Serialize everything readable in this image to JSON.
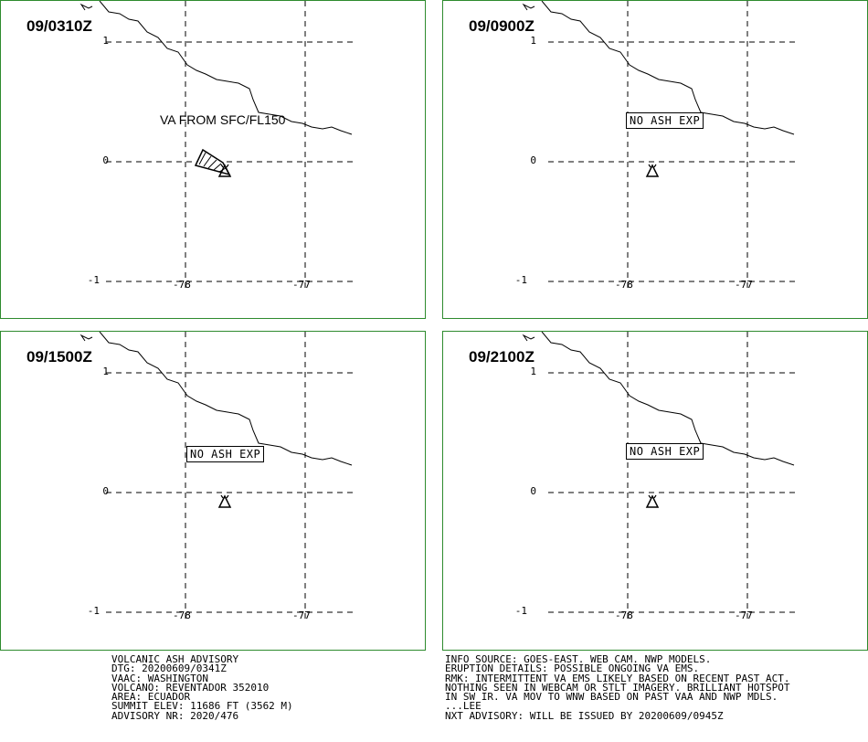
{
  "panels": [
    {
      "time": "09/0310Z",
      "ash_label": "VA FROM SFC/FL150",
      "forecast_label": ""
    },
    {
      "time": "09/0900Z",
      "ash_label": "",
      "forecast_label": "NO ASH EXP"
    },
    {
      "time": "09/1500Z",
      "ash_label": "",
      "forecast_label": "NO ASH EXP"
    },
    {
      "time": "09/2100Z",
      "ash_label": "",
      "forecast_label": "NO ASH EXP"
    }
  ],
  "axes": {
    "lat_ticks": [
      "1",
      "0",
      "-1"
    ],
    "lon_ticks": [
      "-78",
      "-77"
    ]
  },
  "advisory_left": [
    "VOLCANIC ASH ADVISORY",
    "DTG: 20200609/0341Z",
    "VAAC: WASHINGTON",
    "VOLCANO: REVENTADOR 352010",
    "AREA: ECUADOR",
    "SUMMIT ELEV: 11686 FT (3562 M)",
    "ADVISORY NR: 2020/476"
  ],
  "advisory_right": [
    "INFO SOURCE: GOES-EAST. WEB CAM. NWP MODELS.",
    "ERUPTION DETAILS: POSSIBLE ONGOING VA EMS.",
    "RMK: INTERMITTENT VA EMS LIKELY BASED ON RECENT PAST ACT.",
    "NOTHING SEEN IN WEBCAM OR STLT IMAGERY. BRILLIANT HOTSPOT",
    "IN SW IR. VA MOV TO WNW BASED ON PAST VAA AND NWP MDLS.",
    "...LEE",
    "NXT ADVISORY: WILL BE ISSUED BY 20200609/0945Z"
  ]
}
